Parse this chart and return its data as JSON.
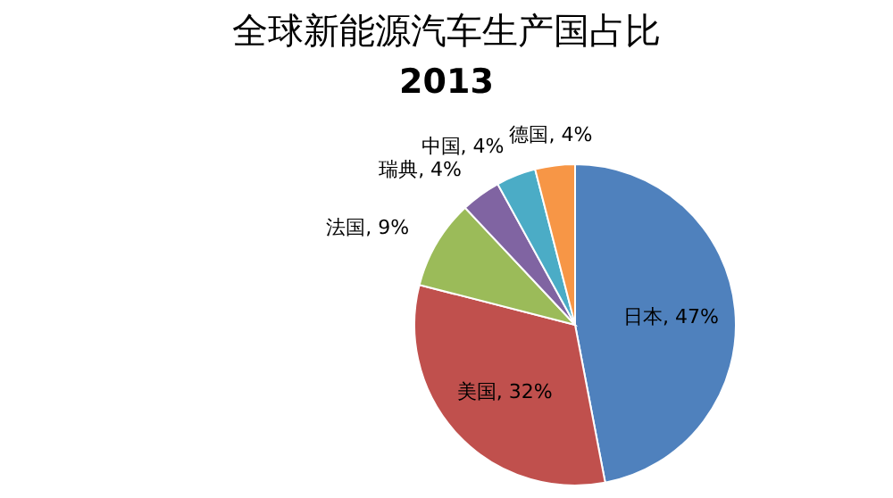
{
  "chart_data": {
    "type": "pie",
    "title": "全球新能源汽车生产国占比",
    "subtitle": "2013",
    "categories": [
      "日本",
      "美国",
      "法国",
      "瑞典",
      "中国",
      "德国"
    ],
    "values": [
      47,
      32,
      9,
      4,
      4,
      4
    ],
    "colors": [
      "#4f81bd",
      "#c0504d",
      "#9bbb59",
      "#8064a2",
      "#4bacc6",
      "#f79646"
    ],
    "value_labels": [
      ", 47%",
      ", 32%",
      ", 9%",
      ", 4%",
      ", 4%",
      ", 4%"
    ],
    "legend": false
  }
}
